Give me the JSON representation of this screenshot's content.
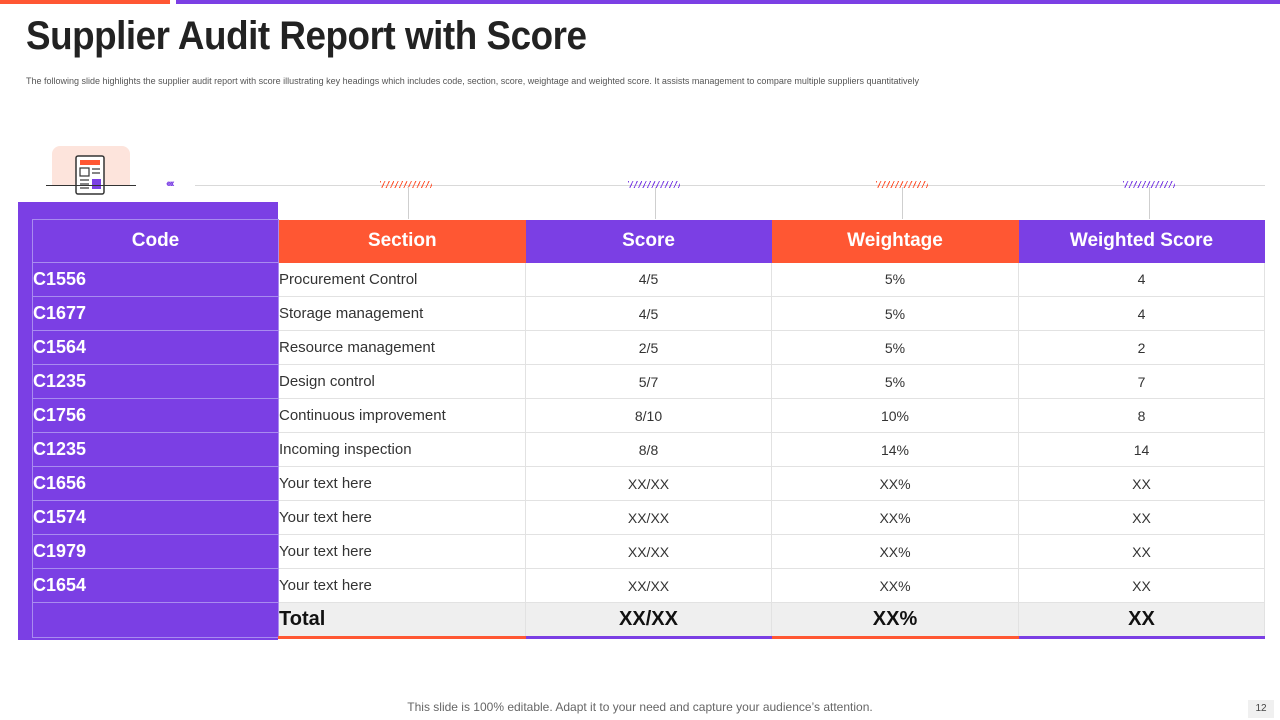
{
  "slide": {
    "title": "Supplier Audit Report with Score",
    "subtitle": "The following slide highlights the supplier audit report with score illustrating key headings which includes code, section, score, weightage and weighted score. It assists management to compare multiple  suppliers quantitatively",
    "footer": "This slide is 100% editable. Adapt it to your need and capture your audience’s attention.",
    "page_number": "12",
    "accent_colors": {
      "orange": "#ff5733",
      "purple": "#7b3fe4"
    },
    "icon": "report-document-icon"
  },
  "table": {
    "headers": {
      "code": "Code",
      "section": "Section",
      "score": "Score",
      "weightage": "Weightage",
      "weighted_score": "Weighted Score"
    },
    "rows": [
      {
        "code": "C1556",
        "section": "Procurement Control",
        "score": "4/5",
        "weightage": "5%",
        "weighted": "4"
      },
      {
        "code": "C1677",
        "section": "Storage management",
        "score": "4/5",
        "weightage": "5%",
        "weighted": "4"
      },
      {
        "code": "C1564",
        "section": "Resource management",
        "score": "2/5",
        "weightage": "5%",
        "weighted": "2"
      },
      {
        "code": "C1235",
        "section": "Design control",
        "score": "5/7",
        "weightage": "5%",
        "weighted": "7"
      },
      {
        "code": "C1756",
        "section": "Continuous improvement",
        "score": "8/10",
        "weightage": "10%",
        "weighted": "8"
      },
      {
        "code": "C1235",
        "section": "Incoming inspection",
        "score": "8/8",
        "weightage": "14%",
        "weighted": "14"
      },
      {
        "code": "C1656",
        "section": "Your text here",
        "score": "XX/XX",
        "weightage": "XX%",
        "weighted": "XX"
      },
      {
        "code": "C1574",
        "section": "Your text here",
        "score": "XX/XX",
        "weightage": "XX%",
        "weighted": "XX"
      },
      {
        "code": "C1979",
        "section": "Your text here",
        "score": "XX/XX",
        "weightage": "XX%",
        "weighted": "XX"
      },
      {
        "code": "C1654",
        "section": "Your text here",
        "score": "XX/XX",
        "weightage": "XX%",
        "weighted": "XX"
      }
    ],
    "total": {
      "label": "Total",
      "score": "XX/XX",
      "weightage": "XX%",
      "weighted": "XX"
    }
  }
}
